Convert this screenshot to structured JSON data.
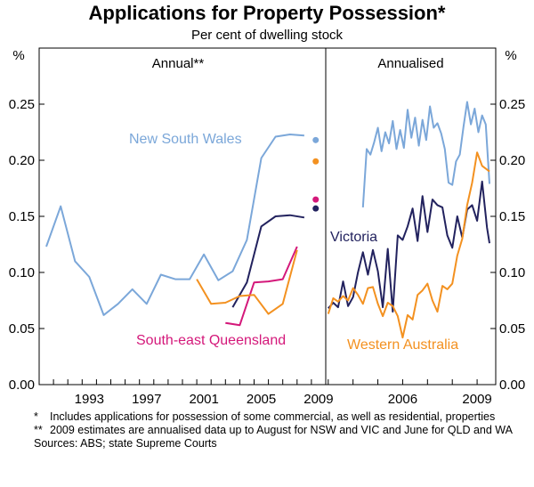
{
  "title": "Applications for Property Possession*",
  "subtitle": "Per cent of dwelling stock",
  "footnotes": [
    {
      "mark": "*",
      "text": "Includes applications for possession of some commercial, as well as residential, properties"
    },
    {
      "mark": "**",
      "text": "2009 estimates are annualised data up to August for NSW and VIC and June for QLD and WA"
    }
  ],
  "sources": "Sources: ABS; state Supreme Courts",
  "colors": {
    "nsw": "#7ba7d9",
    "vic": "#22225e",
    "qld": "#d4187a",
    "wa": "#f39120",
    "axis": "#000000"
  },
  "chart_data": [
    {
      "type": "line",
      "panel_title": "Annual**",
      "ylabel": "%",
      "ylim": [
        0,
        0.25
      ],
      "yticks": [
        "0.00",
        "0.05",
        "0.10",
        "0.15",
        "0.20",
        "0.25"
      ],
      "xlim": [
        1989.5,
        2009.5
      ],
      "xticks": [
        "1993",
        "1997",
        "2001",
        "2005",
        "2009"
      ],
      "grid": false,
      "series": [
        {
          "name": "New South Wales",
          "color_key": "nsw",
          "x": [
            1990,
            1991,
            1992,
            1993,
            1994,
            1995,
            1996,
            1997,
            1998,
            1999,
            2000,
            2001,
            2002,
            2003,
            2004,
            2005,
            2006,
            2007,
            2008
          ],
          "y": [
            0.123,
            0.159,
            0.11,
            0.096,
            0.062,
            0.072,
            0.085,
            0.072,
            0.098,
            0.094,
            0.094,
            0.116,
            0.093,
            0.101,
            0.129,
            0.202,
            0.221,
            0.223,
            0.222
          ]
        },
        {
          "name": "Victoria",
          "color_key": "vic",
          "x": [
            2003,
            2004,
            2005,
            2006,
            2007,
            2008
          ],
          "y": [
            0.069,
            0.091,
            0.141,
            0.15,
            0.151,
            0.149
          ]
        },
        {
          "name": "South-east Queensland",
          "color_key": "qld",
          "x": [
            2002.5,
            2003.5,
            2004.5,
            2005.5,
            2006.5,
            2007.5
          ],
          "y": [
            0.055,
            0.053,
            0.091,
            0.092,
            0.094,
            0.123
          ]
        },
        {
          "name": "Western Australia",
          "color_key": "wa",
          "x": [
            2000.5,
            2001.5,
            2002.5,
            2003.5,
            2004.5,
            2005.5,
            2006.5,
            2007.5
          ],
          "y": [
            0.094,
            0.072,
            0.073,
            0.079,
            0.08,
            0.063,
            0.072,
            0.12
          ]
        }
      ],
      "estimates_2009": [
        {
          "series": "New South Wales",
          "color_key": "nsw",
          "x": 2008.8,
          "y": 0.218
        },
        {
          "series": "Western Australia",
          "color_key": "wa",
          "x": 2008.8,
          "y": 0.199
        },
        {
          "series": "South-east Queensland",
          "color_key": "qld",
          "x": 2008.8,
          "y": 0.165
        },
        {
          "series": "Victoria",
          "color_key": "vic",
          "x": 2008.8,
          "y": 0.157
        }
      ],
      "labels": [
        {
          "text": "New South Wales",
          "color_key": "nsw"
        },
        {
          "text": "South-east Queensland",
          "color_key": "qld"
        }
      ]
    },
    {
      "type": "line",
      "panel_title": "Annualised",
      "ylabel": "%",
      "ylim": [
        0,
        0.25
      ],
      "yticks": [
        "0.00",
        "0.05",
        "0.10",
        "0.15",
        "0.20",
        "0.25"
      ],
      "xlim": [
        2002.9,
        2009.75
      ],
      "xticks": [
        "2006",
        "2009"
      ],
      "grid": false,
      "series": [
        {
          "name": "New South Wales",
          "color_key": "nsw",
          "x": [
            2004.4,
            2004.55,
            2004.7,
            2004.85,
            2005.0,
            2005.15,
            2005.3,
            2005.45,
            2005.6,
            2005.75,
            2005.9,
            2006.05,
            2006.2,
            2006.35,
            2006.5,
            2006.65,
            2006.8,
            2006.95,
            2007.1,
            2007.25,
            2007.4,
            2007.55,
            2007.7,
            2007.85,
            2008.0,
            2008.15,
            2008.3,
            2008.45,
            2008.6,
            2008.75,
            2008.9,
            2009.05,
            2009.2,
            2009.35,
            2009.5
          ],
          "y": [
            0.158,
            0.21,
            0.205,
            0.216,
            0.229,
            0.208,
            0.225,
            0.215,
            0.235,
            0.21,
            0.227,
            0.211,
            0.245,
            0.22,
            0.238,
            0.213,
            0.236,
            0.218,
            0.248,
            0.229,
            0.233,
            0.224,
            0.21,
            0.18,
            0.178,
            0.199,
            0.205,
            0.23,
            0.252,
            0.232,
            0.246,
            0.225,
            0.24,
            0.232,
            0.179
          ]
        },
        {
          "name": "Victoria",
          "color_key": "vic",
          "x": [
            2003.0,
            2003.2,
            2003.4,
            2003.6,
            2003.8,
            2004.0,
            2004.2,
            2004.4,
            2004.6,
            2004.8,
            2005.0,
            2005.2,
            2005.4,
            2005.6,
            2005.8,
            2006.0,
            2006.2,
            2006.4,
            2006.6,
            2006.8,
            2007.0,
            2007.2,
            2007.4,
            2007.6,
            2007.8,
            2008.0,
            2008.2,
            2008.4,
            2008.6,
            2008.8,
            2009.0,
            2009.2,
            2009.4,
            2009.5
          ],
          "y": [
            0.068,
            0.073,
            0.069,
            0.092,
            0.07,
            0.078,
            0.1,
            0.118,
            0.098,
            0.12,
            0.101,
            0.069,
            0.121,
            0.065,
            0.133,
            0.129,
            0.141,
            0.157,
            0.128,
            0.168,
            0.136,
            0.165,
            0.16,
            0.158,
            0.133,
            0.122,
            0.15,
            0.131,
            0.156,
            0.16,
            0.146,
            0.181,
            0.14,
            0.126
          ]
        },
        {
          "name": "Western Australia",
          "color_key": "wa",
          "x": [
            2003.0,
            2003.2,
            2003.4,
            2003.6,
            2003.8,
            2004.0,
            2004.2,
            2004.4,
            2004.6,
            2004.8,
            2005.0,
            2005.2,
            2005.4,
            2005.6,
            2005.8,
            2006.0,
            2006.2,
            2006.4,
            2006.6,
            2006.8,
            2007.0,
            2007.2,
            2007.4,
            2007.6,
            2007.8,
            2008.0,
            2008.2,
            2008.4,
            2008.6,
            2008.8,
            2009.0,
            2009.2,
            2009.5
          ],
          "y": [
            0.063,
            0.077,
            0.074,
            0.079,
            0.075,
            0.086,
            0.08,
            0.072,
            0.086,
            0.087,
            0.072,
            0.061,
            0.073,
            0.07,
            0.061,
            0.042,
            0.062,
            0.058,
            0.08,
            0.084,
            0.09,
            0.075,
            0.065,
            0.088,
            0.085,
            0.09,
            0.115,
            0.13,
            0.16,
            0.18,
            0.207,
            0.195,
            0.19
          ]
        }
      ],
      "labels": [
        {
          "text": "Victoria",
          "color_key": "vic"
        },
        {
          "text": "Western Australia",
          "color_key": "wa"
        }
      ]
    }
  ]
}
